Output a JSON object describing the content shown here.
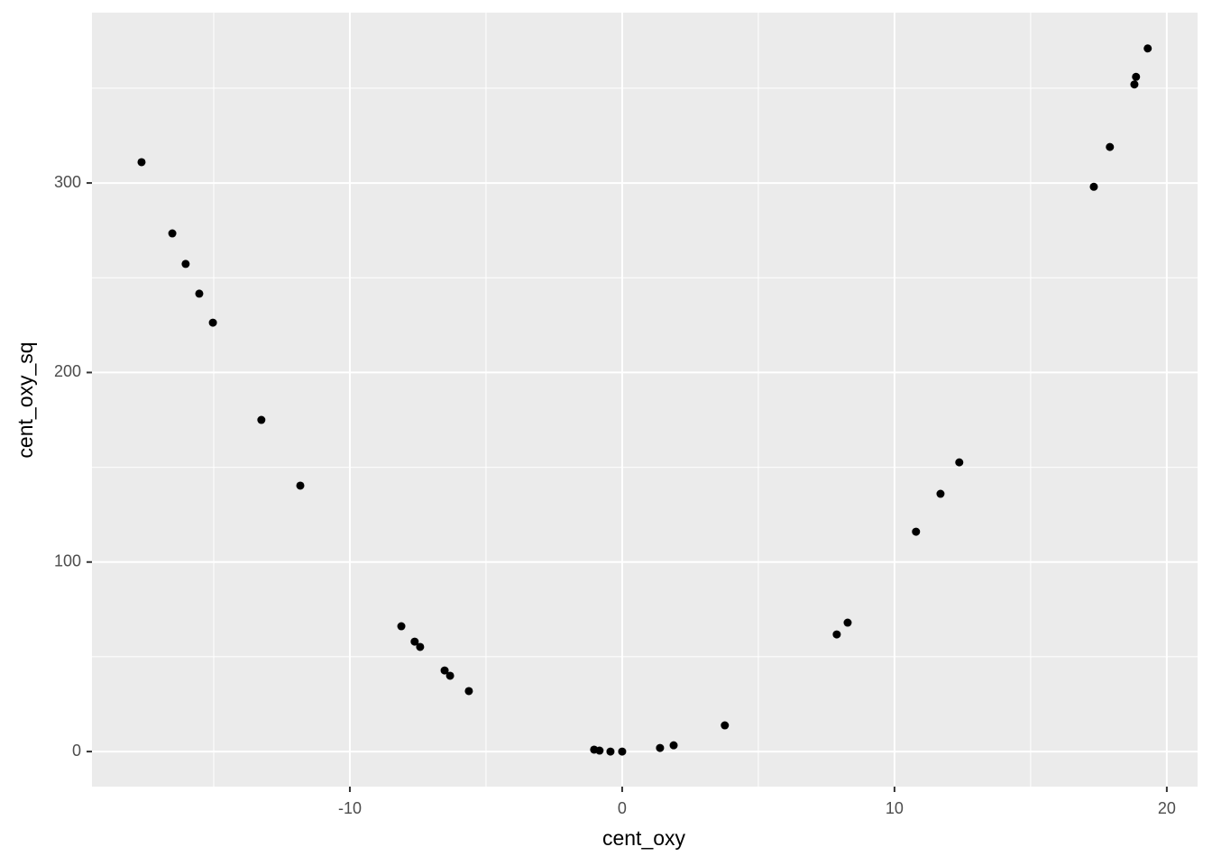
{
  "chart_data": {
    "type": "scatter",
    "x_label": "cent_oxy",
    "y_label": "cent_oxy_sq",
    "x": [
      -17.65,
      -16.52,
      -16.03,
      -15.53,
      -15.03,
      -13.25,
      -11.82,
      -8.11,
      -7.62,
      -7.42,
      -6.52,
      -6.32,
      -5.63,
      -1.03,
      -0.83,
      -0.43,
      0,
      1.39,
      1.89,
      3.77,
      7.88,
      8.28,
      10.79,
      11.69,
      12.38,
      17.32,
      17.91,
      18.81,
      18.87,
      19.3
    ],
    "values": [
      311,
      273.4,
      257.3,
      241.6,
      226.3,
      175,
      140.3,
      66.1,
      58,
      55.2,
      42.8,
      40,
      31.9,
      1,
      0.5,
      0,
      0,
      1.9,
      3.3,
      13.8,
      61.8,
      68,
      116,
      136,
      152.6,
      298,
      319,
      352,
      356,
      371
    ],
    "color": "#000000",
    "xlim": [
      -19.47,
      21.13
    ],
    "ylim": [
      -18.5,
      389.9
    ],
    "xticks": [
      -10,
      0,
      10,
      20
    ],
    "yticks": [
      0,
      100,
      200,
      300
    ],
    "xminor": [
      -15,
      -5,
      5,
      15
    ],
    "yminor": [
      50,
      150,
      250,
      350
    ],
    "grid": true
  }
}
